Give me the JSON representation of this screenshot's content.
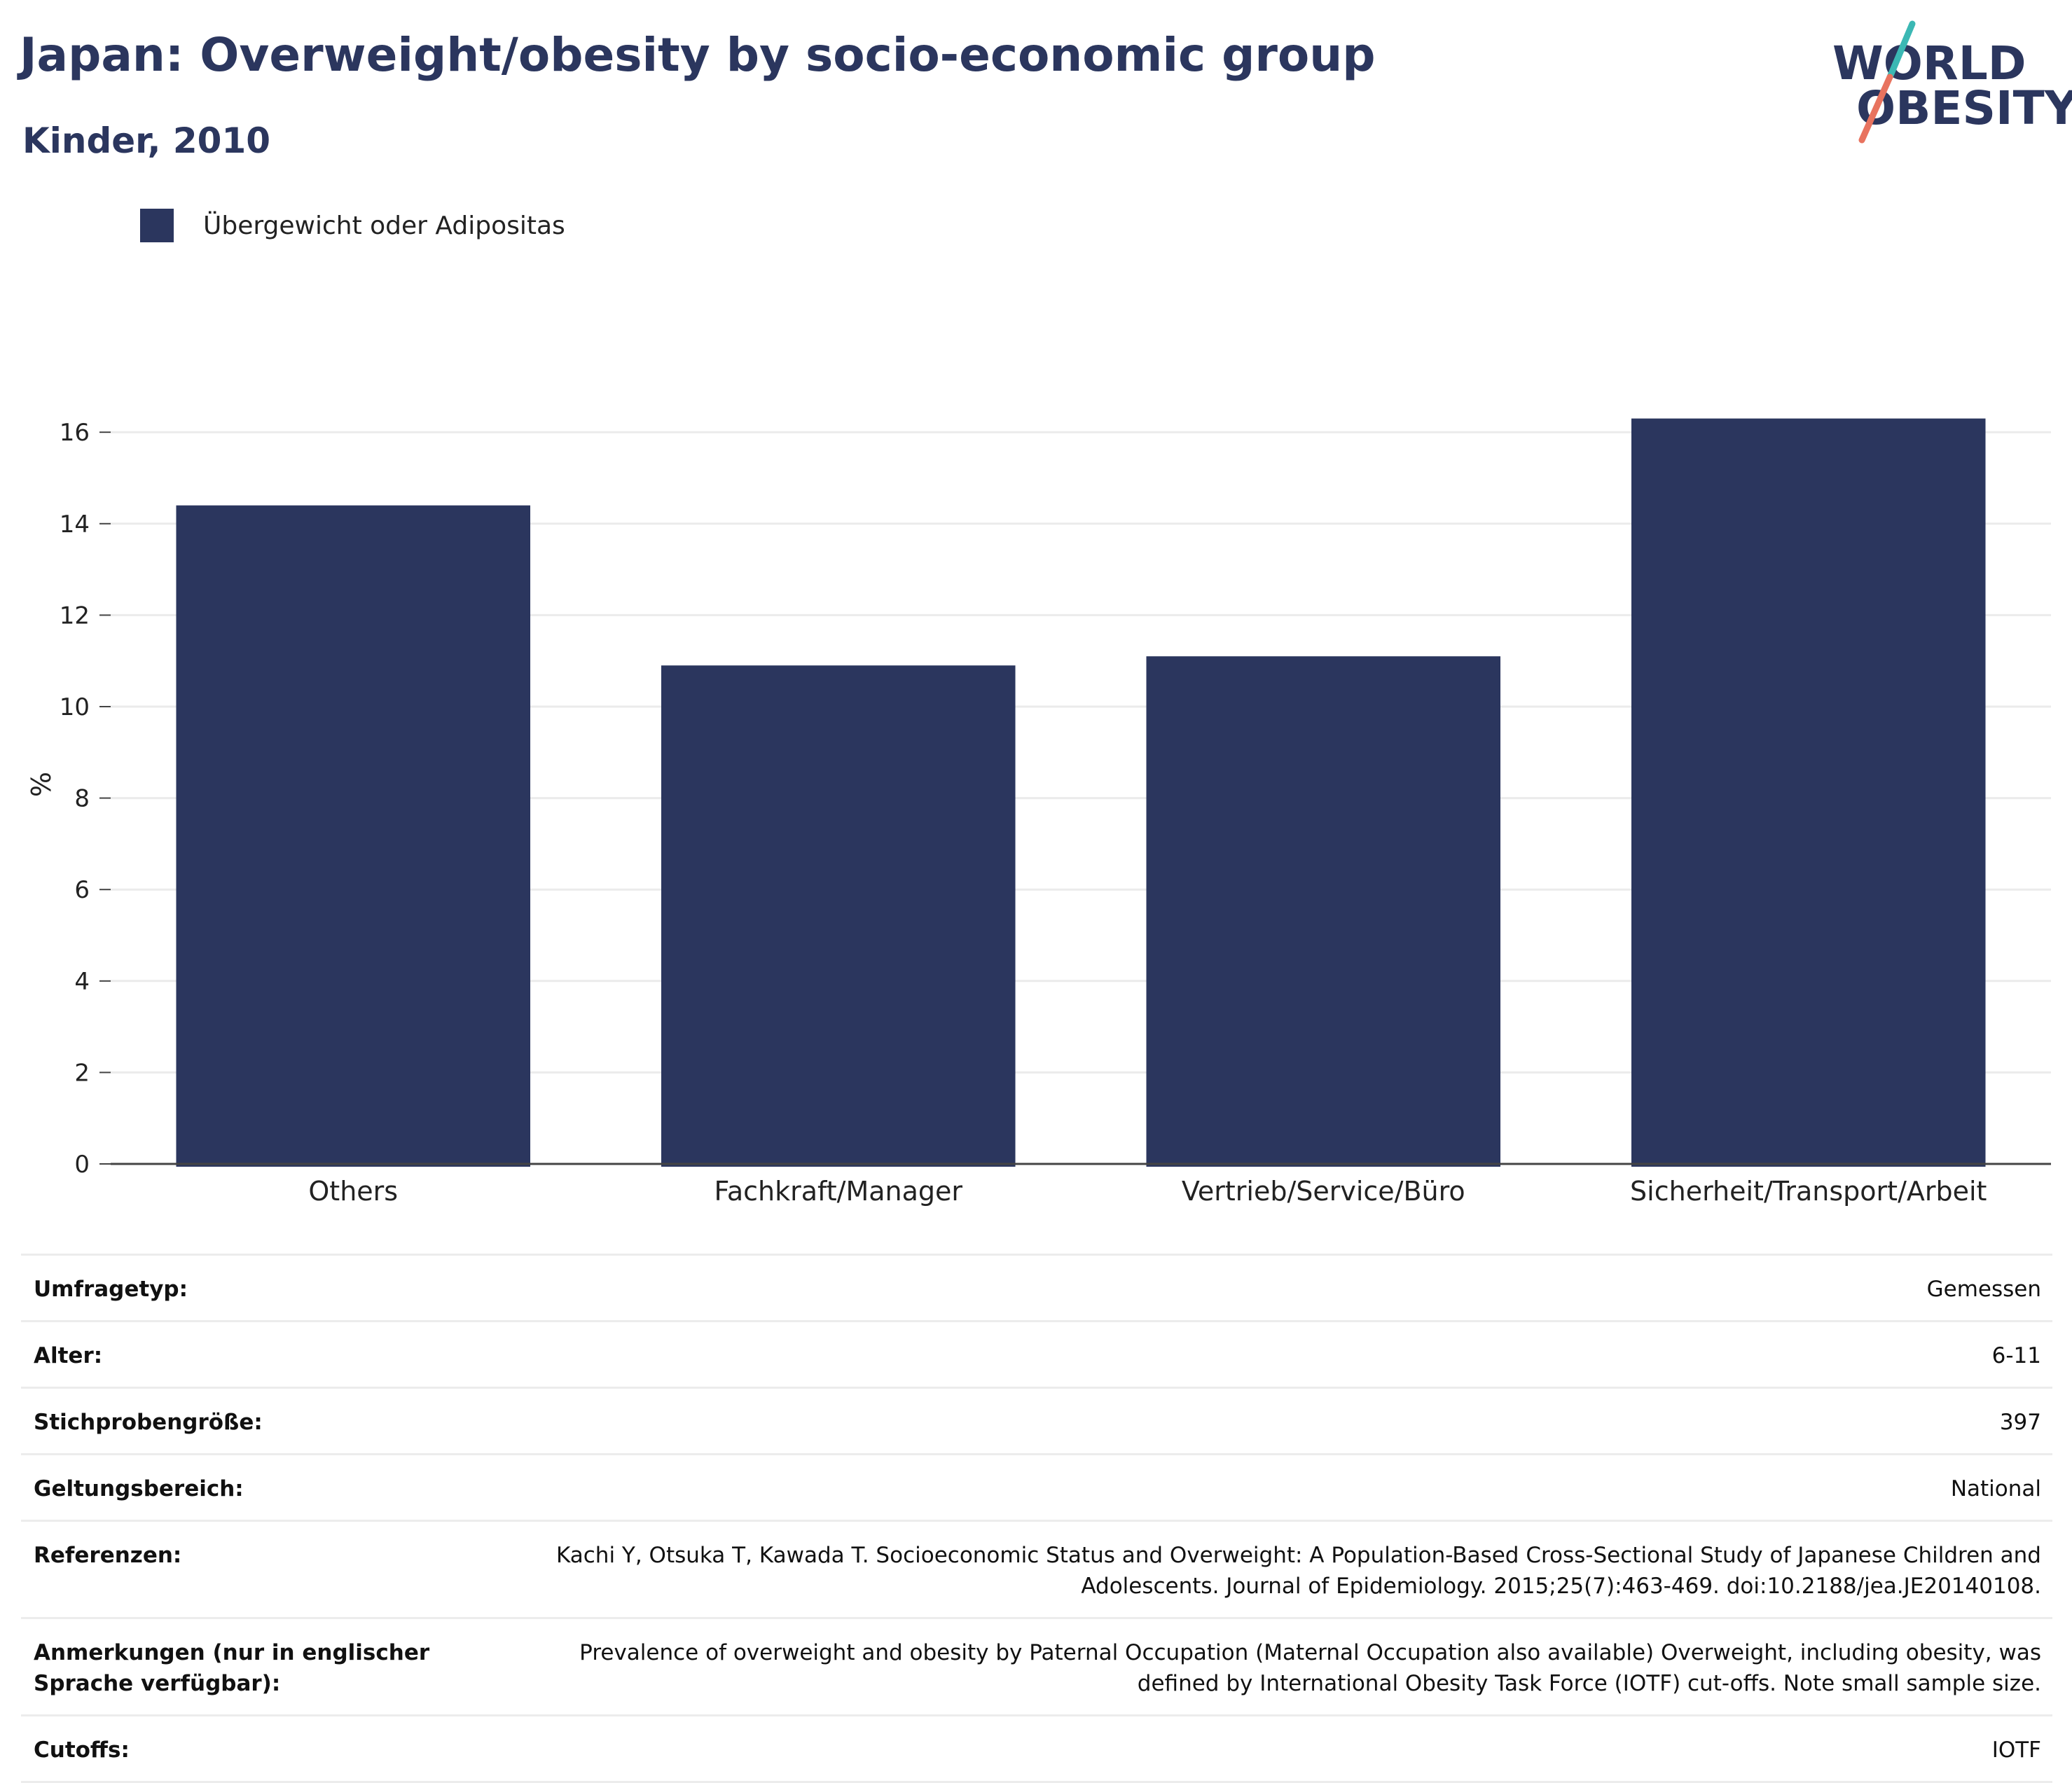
{
  "header": {
    "title": "Japan: Overweight/obesity by socio-economic group",
    "subtitle": "Kinder, 2010"
  },
  "logo": {
    "line1": "WORLD",
    "line2": "OBESITY",
    "colors": {
      "text": "#2b365e",
      "slash_top": "#3bb8b4",
      "slash_bottom": "#e8735f"
    }
  },
  "legend": {
    "label": "Übergewicht oder Adipositas",
    "color": "#2b365e"
  },
  "chart_data": {
    "type": "bar",
    "categories": [
      "Others",
      "Fachkraft/Manager",
      "Vertrieb/Service/Büro",
      "Sicherheit/Transport/Arbeit"
    ],
    "series": [
      {
        "name": "Übergewicht oder Adipositas",
        "values": [
          14.4,
          10.9,
          11.1,
          16.3
        ],
        "color": "#2b365e"
      }
    ],
    "ylabel": "%",
    "ylim": [
      0,
      16.6
    ],
    "yticks": [
      0,
      2,
      4,
      6,
      8,
      10,
      12,
      14,
      16
    ],
    "grid": true,
    "legend_position": "top-left"
  },
  "info": {
    "rows": [
      {
        "label": "Umfragetyp:",
        "value": "Gemessen"
      },
      {
        "label": "Alter:",
        "value": "6-11"
      },
      {
        "label": "Stichprobengröße:",
        "value": "397"
      },
      {
        "label": "Geltungsbereich:",
        "value": "National"
      },
      {
        "label": "Referenzen:",
        "value": "Kachi Y, Otsuka T, Kawada T. Socioeconomic Status and Overweight: A Population-Based Cross-Sectional Study of Japanese Children and Adolescents. Journal of Epidemiology. 2015;25(7):463-469. doi:10.2188/jea.JE20140108."
      },
      {
        "label": "Anmerkungen (nur in englischer Sprache verfügbar):",
        "value": "Prevalence of overweight and obesity by Paternal Occupation (Maternal Occupation also available) Overweight, including obesity, was defined by International Obesity Task Force (IOTF) cut-offs. Note small sample size."
      },
      {
        "label": "Cutoffs:",
        "value": "IOTF"
      }
    ]
  }
}
